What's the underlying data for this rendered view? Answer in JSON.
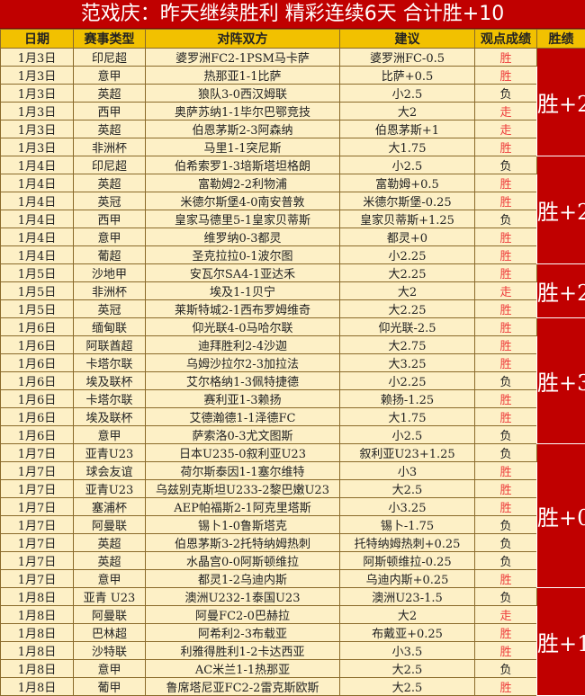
{
  "title": "范戏庆：昨天继续胜利 精彩连续6天 合计胜+10",
  "headers": [
    "日期",
    "赛事类型",
    "对阵双方",
    "建议",
    "观点成绩",
    "胜绩"
  ],
  "colors": {
    "title_bg": "#c00000",
    "header_bg": "#f2c100",
    "row_bg": "#fdf0c6",
    "win_text": "#ee3b3b",
    "block_bg": "#c00000"
  },
  "groups": [
    {
      "summary": "胜+2",
      "rows": [
        [
          "1月3日",
          "印尼超",
          "婆罗洲FC2-1PSM马卡萨",
          "婆罗洲FC-0.5",
          "胜"
        ],
        [
          "1月3日",
          "意甲",
          "热那亚1-1比萨",
          "比萨+0.5",
          "胜"
        ],
        [
          "1月3日",
          "英超",
          "狼队3-0西汉姆联",
          "小2.5",
          "负"
        ],
        [
          "1月3日",
          "西甲",
          "奥萨苏纳1-1毕尔巴鄂竞技",
          "大2",
          "走"
        ],
        [
          "1月3日",
          "英超",
          "伯恩茅斯2-3阿森纳",
          "伯恩茅斯+1",
          "走"
        ],
        [
          "1月3日",
          "非洲杯",
          "马里1-1突尼斯",
          "大1.75",
          "胜"
        ]
      ]
    },
    {
      "summary": "胜+2",
      "rows": [
        [
          "1月4日",
          "印尼超",
          "伯希索罗1-3培斯塔坦格朗",
          "小2.5",
          "负"
        ],
        [
          "1月4日",
          "英超",
          "富勒姆2-2利物浦",
          "富勒姆+0.5",
          "胜"
        ],
        [
          "1月4日",
          "英冠",
          "米德尔斯堡4-0南安普敦",
          "米德尔斯堡-0.25",
          "胜"
        ],
        [
          "1月4日",
          "西甲",
          "皇家马德里5-1皇家贝蒂斯",
          "皇家贝蒂斯+1.25",
          "负"
        ],
        [
          "1月4日",
          "意甲",
          "维罗纳0-3都灵",
          "都灵+0",
          "胜"
        ],
        [
          "1月4日",
          "葡超",
          "圣克拉拉0-1波尔图",
          "小2.25",
          "胜"
        ]
      ]
    },
    {
      "summary": "胜+2",
      "rows": [
        [
          "1月5日",
          "沙地甲",
          "安瓦尔SA4-1亚达禾",
          "大2.25",
          "胜"
        ],
        [
          "1月5日",
          "非洲杯",
          "埃及1-1贝宁",
          "大2",
          "走"
        ],
        [
          "1月5日",
          "英冠",
          "莱斯特城2-1西布罗姆维奇",
          "大2.25",
          "胜"
        ]
      ]
    },
    {
      "summary": "胜+3",
      "rows": [
        [
          "1月6日",
          "缅甸联",
          "仰光联4-0马哈尔联",
          "仰光联-2.5",
          "胜"
        ],
        [
          "1月6日",
          "阿联酋超",
          "迪拜胜利2-4沙迦",
          "大2.75",
          "胜"
        ],
        [
          "1月6日",
          "卡塔尔联",
          "乌姆沙拉尔2-3加拉法",
          "大3.25",
          "胜"
        ],
        [
          "1月6日",
          "埃及联杯",
          "艾尔格纳1-3佩特捷德",
          "小2.25",
          "负"
        ],
        [
          "1月6日",
          "卡塔尔联",
          "赛利亚1-3赖扬",
          "赖扬-1.25",
          "胜"
        ],
        [
          "1月6日",
          "埃及联杯",
          "艾德瀚德1-1泽德FC",
          "大1.75",
          "胜"
        ],
        [
          "1月6日",
          "意甲",
          "萨索洛0-3尤文图斯",
          "小2.5",
          "负"
        ]
      ]
    },
    {
      "summary": "胜+0",
      "rows": [
        [
          "1月7日",
          "亚青U23",
          "日本U235-0叙利亚U23",
          "叙利亚U23+1.25",
          "负"
        ],
        [
          "1月7日",
          "球会友谊",
          "荷尔斯泰因1-1塞尔维特",
          "小3",
          "胜"
        ],
        [
          "1月7日",
          "亚青U23",
          "乌兹别克斯坦U233-2黎巴嫩U23",
          "大2.5",
          "胜"
        ],
        [
          "1月7日",
          "塞浦杯",
          "AEP帕福斯2-1阿克里塔斯",
          "小3.25",
          "胜"
        ],
        [
          "1月7日",
          "阿曼联",
          "锡卜1-0鲁斯塔克",
          "锡卜-1.75",
          "负"
        ],
        [
          "1月7日",
          "英超",
          "伯恩茅斯3-2托特纳姆热刺",
          "托特纳姆热刺+0.25",
          "负"
        ],
        [
          "1月7日",
          "英超",
          "水晶宫0-0阿斯顿维拉",
          "阿斯顿维拉-0.25",
          "负"
        ],
        [
          "1月7日",
          "意甲",
          "都灵1-2乌迪内斯",
          "乌迪内斯+0.25",
          "胜"
        ]
      ]
    },
    {
      "summary": "胜+1",
      "rows": [
        [
          "1月8日",
          "亚青 U23",
          "澳洲U232-1泰国U23",
          "澳洲U23-1.5",
          "负"
        ],
        [
          "1月8日",
          "阿曼联",
          "阿曼FC2-0巴赫拉",
          "大2",
          "走"
        ],
        [
          "1月8日",
          "巴林超",
          "阿希利2-3布载亚",
          "布戴亚+0.25",
          "胜"
        ],
        [
          "1月8日",
          "沙特联",
          "利雅得胜利1-2卡达西亚",
          "小3.5",
          "胜"
        ],
        [
          "1月8日",
          "意甲",
          "AC米兰1-1热那亚",
          "大2.5",
          "负"
        ],
        [
          "1月8日",
          "葡甲",
          "鲁席塔尼亚FC2-2雷克斯欧斯",
          "大2.5",
          "胜"
        ]
      ]
    }
  ]
}
